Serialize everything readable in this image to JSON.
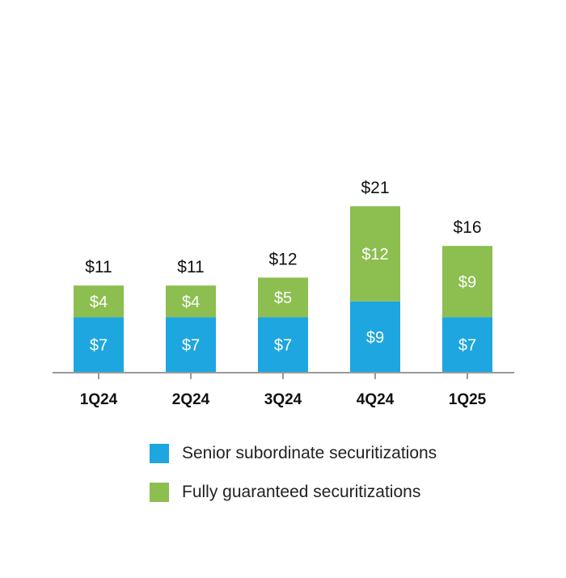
{
  "chart_data": {
    "type": "bar",
    "stacked": true,
    "categories": [
      "1Q24",
      "2Q24",
      "3Q24",
      "4Q24",
      "1Q25"
    ],
    "series": [
      {
        "name": "Senior subordinate securitizations",
        "color": "#1EA6E0",
        "values": [
          7,
          7,
          7,
          9,
          7
        ],
        "labels": [
          "$7",
          "$7",
          "$7",
          "$9",
          "$7"
        ]
      },
      {
        "name": "Fully guaranteed securitizations",
        "color": "#8CBE50",
        "values": [
          4,
          4,
          5,
          12,
          9
        ],
        "labels": [
          "$4",
          "$4",
          "$5",
          "$12",
          "$9"
        ]
      }
    ],
    "totals": [
      11,
      11,
      12,
      21,
      16
    ],
    "total_labels": [
      "$11",
      "$11",
      "$12",
      "$21",
      "$16"
    ],
    "ylim": [
      0,
      25
    ],
    "grid": false,
    "legend_position": "bottom",
    "axis_color": "#999999"
  }
}
